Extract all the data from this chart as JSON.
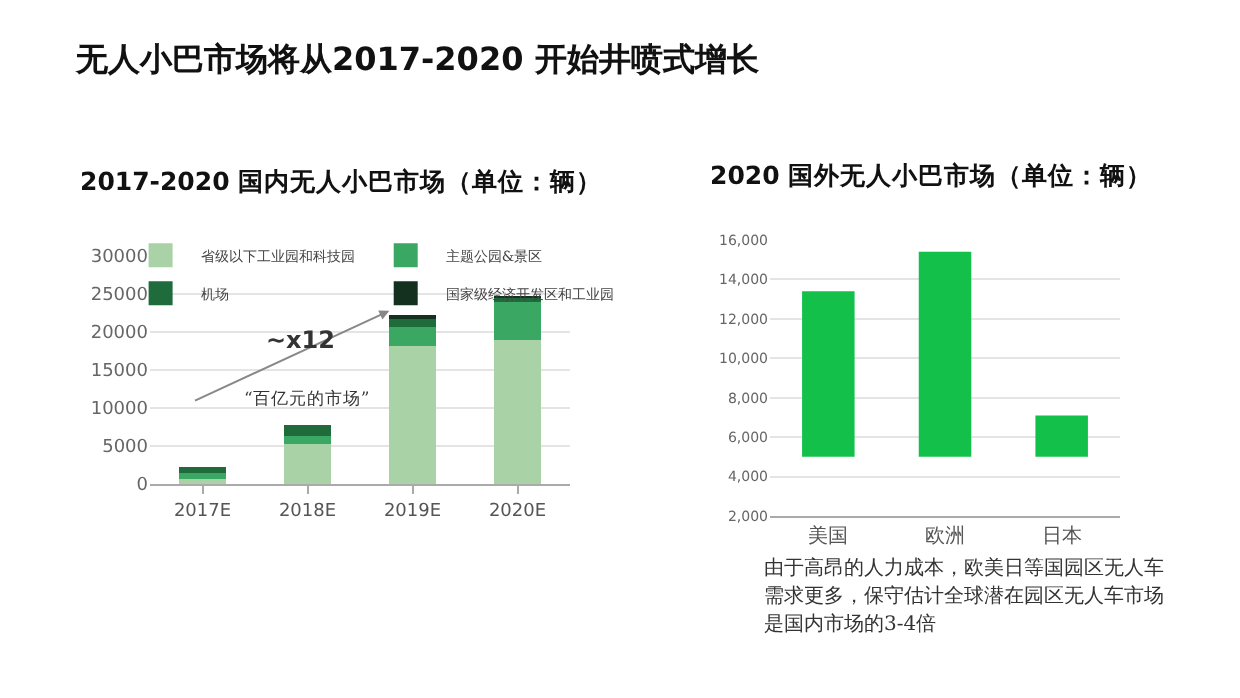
{
  "chart_data": [
    {
      "type": "bar",
      "title": "无人小巴市场将从2017-2020 开始井喷式增长",
      "subtitle": "2017-2020 国内无人小巴市场（单位：辆）",
      "categories": [
        "2017E",
        "2018E",
        "2019E",
        "2020E"
      ],
      "stacked": true,
      "series": [
        {
          "name": "省级以下工业园和科技园",
          "color": "#a9d3a6",
          "values": [
            700,
            5200,
            18100,
            19000
          ]
        },
        {
          "name": "主题公园&景区",
          "color": "#3aa862",
          "values": [
            800,
            1100,
            2500,
            4900
          ]
        },
        {
          "name": "机场",
          "color": "#1f6b3c",
          "values": [
            700,
            1400,
            1100,
            600
          ]
        },
        {
          "name": "国家级经济开发区和工业园",
          "color": "#14301f",
          "values": [
            100,
            100,
            600,
            300
          ]
        }
      ],
      "ylim": [
        0,
        30000
      ],
      "yticks": [
        0,
        5000,
        10000,
        15000,
        20000,
        25000,
        30000
      ],
      "grid": "y",
      "legend": "top",
      "annotations": [
        "~x12",
        "“百亿元的市场”"
      ]
    },
    {
      "type": "bar",
      "subtitle": "2020 国外无人小巴市场（单位：辆）",
      "categories": [
        "美国",
        "欧洲",
        "日本"
      ],
      "color": "#12c04a",
      "base": [
        5000,
        5000,
        5000
      ],
      "values": [
        8400,
        10400,
        2100
      ],
      "ylim": [
        2000,
        16000
      ],
      "yticks": [
        {
          "value": 2000,
          "label": "2,000"
        },
        {
          "value": 4000,
          "label": "4,000"
        },
        {
          "value": 6000,
          "label": "6,000"
        },
        {
          "value": 8000,
          "label": "8,000"
        },
        {
          "value": 10000,
          "label": "10,000"
        },
        {
          "value": 12000,
          "label": "12,000"
        },
        {
          "value": 14000,
          "label": "14,000"
        },
        {
          "value": 16000,
          "label": "16,000"
        }
      ],
      "grid": "y",
      "annotations": [
        "由于高昂的人力成本，欧美日等国园区无人车需求更多，保守估计全球潜在园区无人车市场是国内市场的3-4倍"
      ]
    }
  ]
}
